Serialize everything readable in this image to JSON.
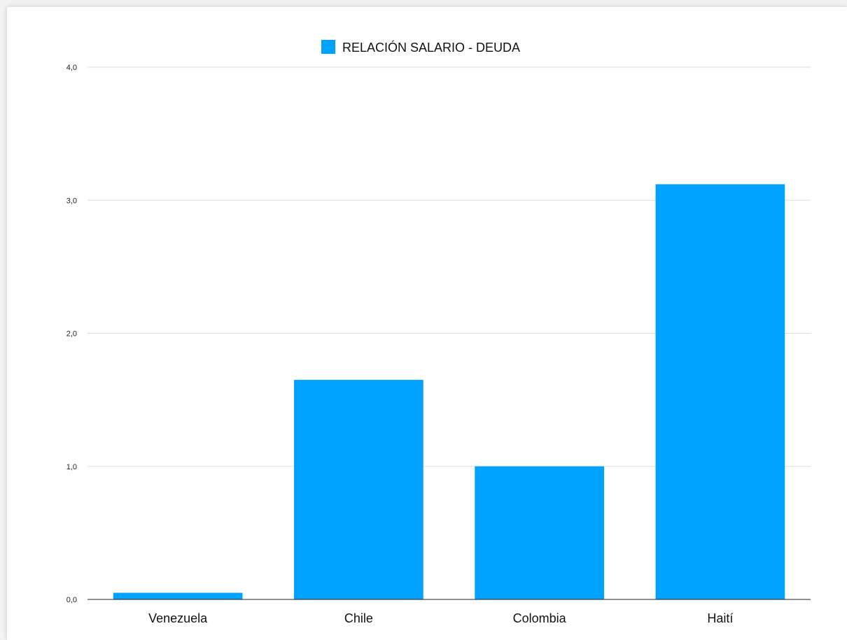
{
  "chart_data": {
    "type": "bar",
    "categories": [
      "Venezuela",
      "Chile",
      "Colombia",
      "Haití"
    ],
    "series": [
      {
        "name": "RELACIÓN SALARIO - DEUDA",
        "values": [
          0.05,
          1.65,
          1.0,
          3.12
        ],
        "color": "#00A2FF"
      }
    ],
    "ylim": [
      0,
      4
    ],
    "yticks": [
      "0,0",
      "1,0",
      "2,0",
      "3,0",
      "4,0"
    ],
    "yticks_values": [
      0,
      1,
      2,
      3,
      4
    ],
    "grid": true,
    "legend": "top-center",
    "gridline_color": "#dddddd",
    "axis_color": "#222222"
  }
}
